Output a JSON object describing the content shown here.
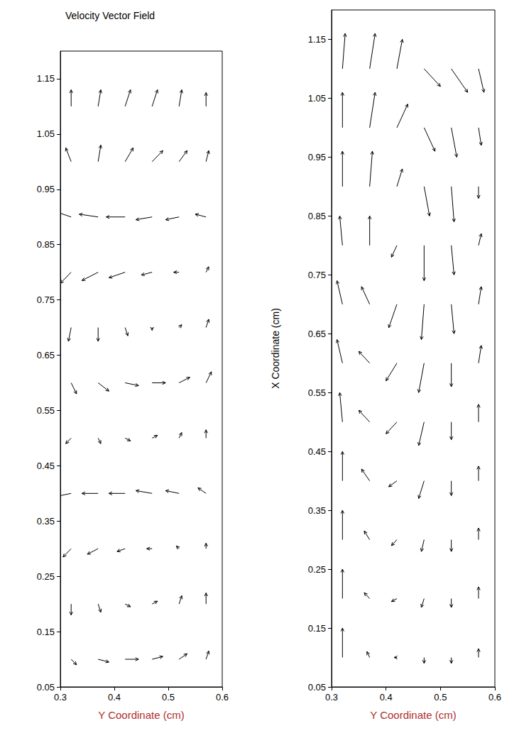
{
  "chart_data": [
    {
      "type": "quiver",
      "title": "Velocity Vector Field",
      "x_label": "Y Coordinate (cm)",
      "xlim": [
        0.3,
        0.6
      ],
      "ylim": [
        0.05,
        1.2
      ],
      "xticks": [
        0.3,
        0.4,
        0.5,
        0.6
      ],
      "yticks": [
        0.05,
        0.15,
        0.25,
        0.35,
        0.45,
        0.55,
        0.65,
        0.75,
        0.85,
        0.95,
        1.05,
        1.15
      ],
      "grid": false,
      "color": "#000000",
      "vectors": [
        [
          0.32,
          1.1,
          0,
          0.03
        ],
        [
          0.37,
          1.1,
          0.005,
          0.03
        ],
        [
          0.42,
          1.1,
          0.01,
          0.03
        ],
        [
          0.47,
          1.1,
          0.01,
          0.03
        ],
        [
          0.52,
          1.1,
          0.005,
          0.03
        ],
        [
          0.57,
          1.1,
          0,
          0.025
        ],
        [
          0.32,
          1.0,
          -0.01,
          0.025
        ],
        [
          0.37,
          1.0,
          0.005,
          0.03
        ],
        [
          0.42,
          1.0,
          0.015,
          0.025
        ],
        [
          0.47,
          1.0,
          0.02,
          0.02
        ],
        [
          0.52,
          1.0,
          0.015,
          0.02
        ],
        [
          0.57,
          1.0,
          0.005,
          0.02
        ],
        [
          0.32,
          0.9,
          -0.03,
          0.01
        ],
        [
          0.37,
          0.9,
          -0.035,
          0.005
        ],
        [
          0.42,
          0.9,
          -0.035,
          0
        ],
        [
          0.47,
          0.9,
          -0.03,
          -0.005
        ],
        [
          0.52,
          0.9,
          -0.025,
          -0.005
        ],
        [
          0.57,
          0.9,
          -0.02,
          0.005
        ],
        [
          0.32,
          0.8,
          -0.02,
          -0.02
        ],
        [
          0.37,
          0.8,
          -0.03,
          -0.015
        ],
        [
          0.42,
          0.8,
          -0.03,
          -0.01
        ],
        [
          0.47,
          0.8,
          -0.02,
          -0.005
        ],
        [
          0.52,
          0.8,
          -0.01,
          0
        ],
        [
          0.57,
          0.8,
          0.005,
          0.01
        ],
        [
          0.32,
          0.7,
          -0.005,
          -0.025
        ],
        [
          0.37,
          0.7,
          0,
          -0.025
        ],
        [
          0.42,
          0.7,
          0.005,
          -0.015
        ],
        [
          0.47,
          0.7,
          0,
          -0.005
        ],
        [
          0.52,
          0.7,
          0.005,
          0.005
        ],
        [
          0.57,
          0.7,
          0.005,
          0.015
        ],
        [
          0.32,
          0.6,
          0.01,
          -0.02
        ],
        [
          0.37,
          0.6,
          0.02,
          -0.015
        ],
        [
          0.42,
          0.6,
          0.025,
          -0.005
        ],
        [
          0.47,
          0.6,
          0.025,
          0
        ],
        [
          0.52,
          0.6,
          0.02,
          0.01
        ],
        [
          0.57,
          0.6,
          0.01,
          0.02
        ],
        [
          0.32,
          0.5,
          -0.01,
          -0.01
        ],
        [
          0.37,
          0.5,
          0.005,
          -0.01
        ],
        [
          0.42,
          0.5,
          0.01,
          -0.005
        ],
        [
          0.47,
          0.5,
          0.01,
          0.005
        ],
        [
          0.52,
          0.5,
          0.005,
          0.01
        ],
        [
          0.57,
          0.5,
          0,
          0.015
        ],
        [
          0.32,
          0.4,
          -0.025,
          -0.005
        ],
        [
          0.37,
          0.4,
          -0.03,
          0
        ],
        [
          0.42,
          0.4,
          -0.03,
          0
        ],
        [
          0.47,
          0.4,
          -0.03,
          0.005
        ],
        [
          0.52,
          0.4,
          -0.025,
          0.005
        ],
        [
          0.57,
          0.4,
          -0.015,
          0.01
        ],
        [
          0.32,
          0.3,
          -0.015,
          -0.015
        ],
        [
          0.37,
          0.3,
          -0.02,
          -0.01
        ],
        [
          0.42,
          0.3,
          -0.015,
          -0.005
        ],
        [
          0.47,
          0.3,
          -0.01,
          0
        ],
        [
          0.52,
          0.3,
          -0.005,
          0.005
        ],
        [
          0.57,
          0.3,
          0,
          0.01
        ],
        [
          0.32,
          0.2,
          0,
          -0.02
        ],
        [
          0.37,
          0.2,
          0.005,
          -0.015
        ],
        [
          0.42,
          0.2,
          0.01,
          -0.005
        ],
        [
          0.47,
          0.2,
          0.01,
          0.005
        ],
        [
          0.52,
          0.2,
          0.005,
          0.015
        ],
        [
          0.57,
          0.2,
          0,
          0.02
        ],
        [
          0.32,
          0.1,
          0.01,
          -0.01
        ],
        [
          0.37,
          0.1,
          0.02,
          -0.005
        ],
        [
          0.42,
          0.1,
          0.025,
          0
        ],
        [
          0.47,
          0.1,
          0.02,
          0.005
        ],
        [
          0.52,
          0.1,
          0.015,
          0.01
        ],
        [
          0.57,
          0.1,
          0.005,
          0.015
        ]
      ]
    },
    {
      "type": "quiver",
      "x_label": "Y Coordinate (cm)",
      "y_label": "X Coordinate (cm)",
      "xlim": [
        0.3,
        0.6
      ],
      "ylim": [
        0.05,
        1.2
      ],
      "xticks": [
        0.3,
        0.4,
        0.5,
        0.6
      ],
      "yticks": [
        0.05,
        0.15,
        0.25,
        0.35,
        0.45,
        0.55,
        0.65,
        0.75,
        0.85,
        0.95,
        1.05,
        1.15
      ],
      "grid": false,
      "color": "#000000",
      "vectors": [
        [
          0.32,
          1.1,
          0.005,
          0.06
        ],
        [
          0.37,
          1.1,
          0.01,
          0.06
        ],
        [
          0.42,
          1.1,
          0.01,
          0.05
        ],
        [
          0.47,
          1.1,
          0.03,
          -0.03
        ],
        [
          0.52,
          1.1,
          0.03,
          -0.04
        ],
        [
          0.57,
          1.1,
          0.01,
          -0.04
        ],
        [
          0.32,
          1.0,
          0,
          0.06
        ],
        [
          0.37,
          1.0,
          0.01,
          0.06
        ],
        [
          0.42,
          1.0,
          0.02,
          0.04
        ],
        [
          0.47,
          1.0,
          0.02,
          -0.04
        ],
        [
          0.52,
          1.0,
          0.01,
          -0.05
        ],
        [
          0.57,
          1.0,
          0.005,
          -0.03
        ],
        [
          0.32,
          0.9,
          0,
          0.06
        ],
        [
          0.37,
          0.9,
          0.005,
          0.06
        ],
        [
          0.42,
          0.9,
          0.01,
          0.03
        ],
        [
          0.47,
          0.9,
          0.01,
          -0.05
        ],
        [
          0.52,
          0.9,
          0.005,
          -0.06
        ],
        [
          0.57,
          0.9,
          0,
          -0.02
        ],
        [
          0.32,
          0.8,
          -0.005,
          0.05
        ],
        [
          0.37,
          0.8,
          0,
          0.05
        ],
        [
          0.42,
          0.8,
          -0.01,
          -0.02
        ],
        [
          0.47,
          0.8,
          0,
          -0.06
        ],
        [
          0.52,
          0.8,
          0.005,
          -0.05
        ],
        [
          0.57,
          0.8,
          0.005,
          0.02
        ],
        [
          0.32,
          0.7,
          -0.01,
          0.04
        ],
        [
          0.37,
          0.7,
          -0.015,
          0.03
        ],
        [
          0.42,
          0.7,
          -0.015,
          -0.04
        ],
        [
          0.47,
          0.7,
          -0.005,
          -0.06
        ],
        [
          0.52,
          0.7,
          0.005,
          -0.05
        ],
        [
          0.57,
          0.7,
          0.005,
          0.03
        ],
        [
          0.32,
          0.6,
          -0.01,
          0.04
        ],
        [
          0.37,
          0.6,
          -0.02,
          0.02
        ],
        [
          0.42,
          0.6,
          -0.02,
          -0.03
        ],
        [
          0.47,
          0.6,
          -0.01,
          -0.05
        ],
        [
          0.52,
          0.6,
          0,
          -0.04
        ],
        [
          0.57,
          0.6,
          0.005,
          0.03
        ],
        [
          0.32,
          0.5,
          -0.005,
          0.05
        ],
        [
          0.37,
          0.5,
          -0.02,
          0.02
        ],
        [
          0.42,
          0.5,
          -0.02,
          -0.02
        ],
        [
          0.47,
          0.5,
          -0.01,
          -0.04
        ],
        [
          0.52,
          0.5,
          0,
          -0.03
        ],
        [
          0.57,
          0.5,
          0,
          0.03
        ],
        [
          0.32,
          0.4,
          0,
          0.05
        ],
        [
          0.37,
          0.4,
          -0.015,
          0.02
        ],
        [
          0.42,
          0.4,
          -0.015,
          -0.01
        ],
        [
          0.47,
          0.4,
          -0.01,
          -0.03
        ],
        [
          0.52,
          0.4,
          0,
          -0.025
        ],
        [
          0.57,
          0.4,
          0,
          0.025
        ],
        [
          0.32,
          0.3,
          0,
          0.05
        ],
        [
          0.37,
          0.3,
          -0.01,
          0.015
        ],
        [
          0.42,
          0.3,
          -0.01,
          -0.01
        ],
        [
          0.47,
          0.3,
          -0.005,
          -0.02
        ],
        [
          0.52,
          0.3,
          0,
          -0.02
        ],
        [
          0.57,
          0.3,
          0,
          0.02
        ],
        [
          0.32,
          0.2,
          0,
          0.05
        ],
        [
          0.37,
          0.2,
          -0.01,
          0.01
        ],
        [
          0.42,
          0.2,
          -0.01,
          -0.005
        ],
        [
          0.47,
          0.2,
          -0.005,
          -0.015
        ],
        [
          0.52,
          0.2,
          0,
          -0.015
        ],
        [
          0.57,
          0.2,
          0,
          0.02
        ],
        [
          0.32,
          0.1,
          0,
          0.05
        ],
        [
          0.37,
          0.1,
          -0.005,
          0.01
        ],
        [
          0.42,
          0.1,
          -0.005,
          0
        ],
        [
          0.47,
          0.1,
          0,
          -0.01
        ],
        [
          0.52,
          0.1,
          0,
          -0.01
        ],
        [
          0.57,
          0.1,
          0,
          0.015
        ]
      ]
    }
  ]
}
